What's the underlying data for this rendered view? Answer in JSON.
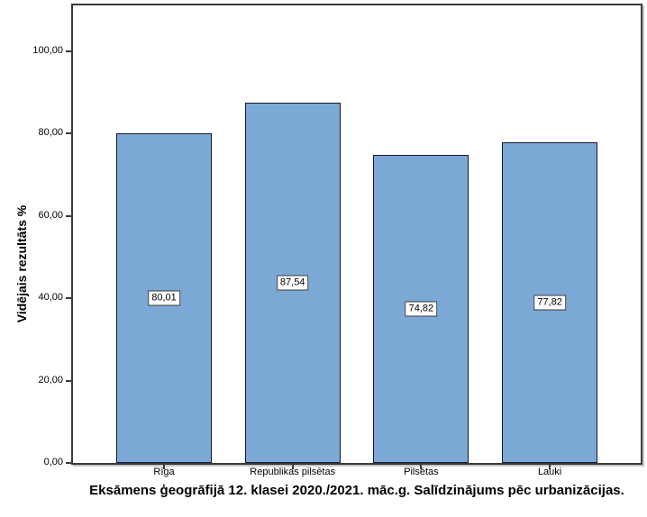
{
  "chart_data": {
    "type": "bar",
    "categories": [
      "Rīga",
      "Republikas pilsētas",
      "Pilsētas",
      "Lauki"
    ],
    "values": [
      80.01,
      87.54,
      74.82,
      77.82
    ],
    "value_labels": [
      "80,01",
      "87,54",
      "74,82",
      "77,82"
    ],
    "title": "Eksāmens ģeogrāfijā 12. klasei 2020./2021. māc.g. Salīdzinājums pēc urbanizācijas.",
    "xlabel": "",
    "ylabel": "Vidējais rezultāts %",
    "y_tick_labels": [
      "0,00",
      "20,00",
      "40,00",
      "60,00",
      "80,00",
      "100,00"
    ],
    "y_tick_values": [
      0,
      20,
      40,
      60,
      80,
      100
    ],
    "ylim": [
      0,
      111.4
    ],
    "grid": false,
    "legend": "none",
    "bar_fill_color": "#7ca8d6",
    "bar_border_color": "#16162e",
    "axis_color": "#3a3a3a",
    "value_label_bg": "#ffffff",
    "value_label_border": "#3a3a3a"
  }
}
